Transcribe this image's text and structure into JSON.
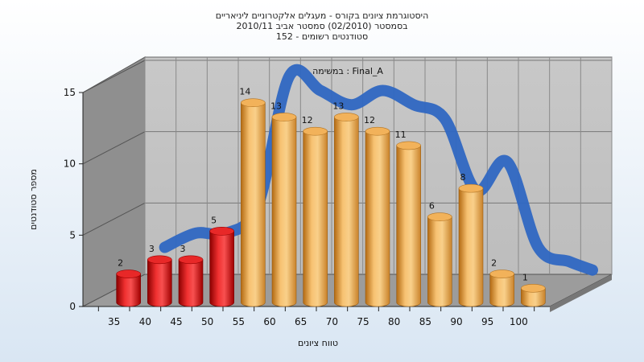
{
  "chart_data": {
    "type": "bar",
    "title_lines": [
      "היסטוגרמת ציונים בקורס - מעגלים אלקטרוניים ליניאריים",
      "בסמסטר  (02/2010)  סמסטר אביב 2010/11",
      "סטודנטים רשומים - 152"
    ],
    "annotation": "במשימה : Final_A",
    "xlabel": "טווח ציונים",
    "ylabel": "מספר סטודנטים",
    "categories": [
      "35",
      "40",
      "45",
      "50",
      "55",
      "60",
      "65",
      "70",
      "75",
      "80",
      "85",
      "90",
      "95",
      "100"
    ],
    "values": [
      2,
      3,
      3,
      5,
      14,
      13,
      12,
      13,
      12,
      11,
      6,
      8,
      2,
      1
    ],
    "value_labels": [
      "2",
      "3",
      "3",
      "5",
      "14",
      "13",
      "12",
      "13",
      "12",
      "11",
      "6",
      "8",
      "2",
      "1"
    ],
    "yticks": [
      "0",
      "5",
      "10",
      "15"
    ],
    "ylim": [
      0,
      15
    ],
    "grid": true,
    "bar_colors": [
      "#d01010",
      "#d01010",
      "#d01010",
      "#d01010",
      "#e8a040",
      "#e8a040",
      "#e8a040",
      "#e8a040",
      "#e8a040",
      "#e8a040",
      "#e8a040",
      "#e8a040",
      "#e8a040",
      "#e8a040"
    ],
    "curve_color": "#2f67c2"
  }
}
